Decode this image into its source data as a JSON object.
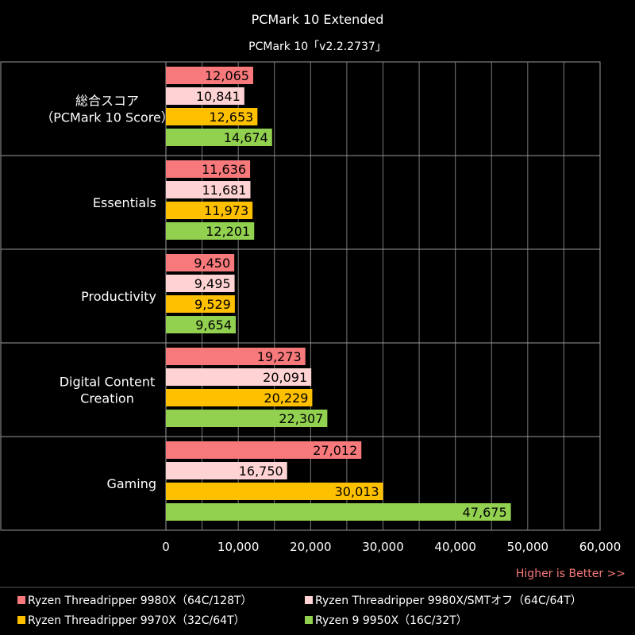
{
  "chart_data": {
    "type": "bar",
    "orientation": "horizontal",
    "title": "PCMark 10 Extended",
    "subtitle": "PCMark 10「v2.2.2737」",
    "categories": [
      "総合スコア\n（PCMark 10 Score）",
      "Essentials",
      "Productivity",
      "Digital Content\nCreation",
      "Gaming"
    ],
    "series": [
      {
        "name": "Ryzen Threadripper 9980X（64C/128T）",
        "color": "#f8797b",
        "values": [
          12065,
          11636,
          9450,
          19273,
          27012
        ]
      },
      {
        "name": "Ryzen Threadripper 9980X/SMTオフ（64C/64T）",
        "color": "#ffd3d3",
        "values": [
          10841,
          11681,
          9495,
          20091,
          16750
        ]
      },
      {
        "name": "Ryzen Threadripper 9970X（32C/64T）",
        "color": "#ffc000",
        "values": [
          12653,
          11973,
          9529,
          20229,
          30013
        ]
      },
      {
        "name": "Ryzen 9 9950X（16C/32T）",
        "color": "#92d050",
        "values": [
          14674,
          12201,
          9654,
          22307,
          47675
        ]
      }
    ],
    "value_labels": [
      [
        "12,065",
        "11,636",
        "9,450",
        "19,273",
        "27,012"
      ],
      [
        "10,841",
        "11,681",
        "9,495",
        "20,091",
        "16,750"
      ],
      [
        "12,653",
        "11,973",
        "9,529",
        "20,229",
        "30,013"
      ],
      [
        "14,674",
        "12,201",
        "9,654",
        "22,307",
        "47,675"
      ]
    ],
    "xlim": [
      0,
      60000
    ],
    "xticks": [
      0,
      10000,
      20000,
      30000,
      40000,
      50000,
      60000
    ],
    "xtick_labels": [
      "0",
      "10,000",
      "20,000",
      "30,000",
      "40,000",
      "50,000",
      "60,000"
    ],
    "note": "Higher is Better >>",
    "note_color": "#f8797b",
    "grid": true,
    "legend_position": "bottom"
  }
}
